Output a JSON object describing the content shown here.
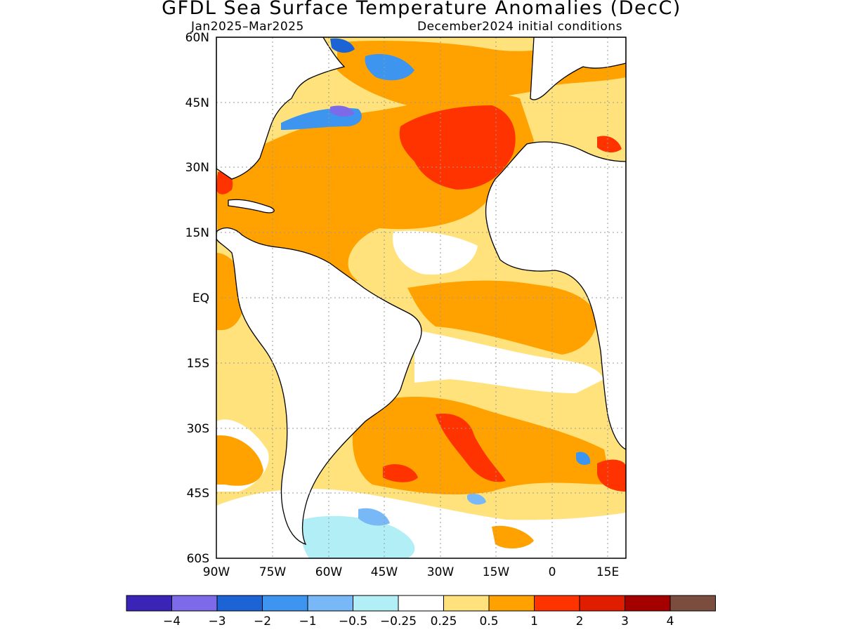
{
  "title": "GFDL Sea Surface Temperature Anomalies (DecC)",
  "subtitle_left": "Jan2025–Mar2025",
  "subtitle_right": "December2024 initial conditions",
  "map": {
    "region": "Atlantic Ocean",
    "lon_range": [
      -90,
      20
    ],
    "lat_range": [
      -60,
      60
    ],
    "lat_ticks": [
      "60N",
      "45N",
      "30N",
      "15N",
      "EQ",
      "15S",
      "30S",
      "45S",
      "60S"
    ],
    "lon_ticks": [
      "90W",
      "75W",
      "60W",
      "45W",
      "30W",
      "15W",
      "0",
      "15E"
    ],
    "grid": "dotted"
  },
  "colorbar": {
    "colors": [
      "#3a23b7",
      "#7c6ae8",
      "#1c63d6",
      "#3d95f0",
      "#78b8f7",
      "#b2eef6",
      "#ffffff",
      "#ffe27c",
      "#ffa200",
      "#ff3300",
      "#e11d00",
      "#a50000",
      "#7a4d3e"
    ],
    "labels": [
      "−4",
      "−3",
      "−2",
      "−1",
      "−0.5",
      "−0.25",
      "0.25",
      "0.5",
      "1",
      "2",
      "3",
      "4"
    ]
  }
}
